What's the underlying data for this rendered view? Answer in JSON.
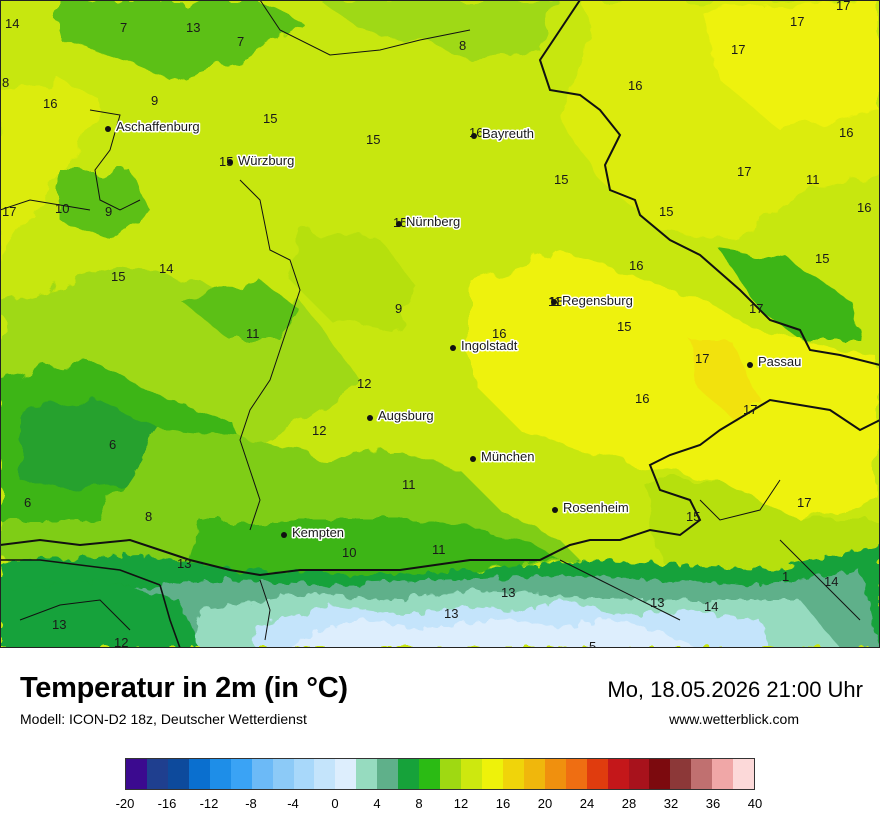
{
  "header": {
    "title": "Temperatur in 2m (in °C)",
    "model": "Modell: ICON-D2 18z, Deutscher Wetterdienst",
    "datetime": "Mo, 18.05.2026 21:00 Uhr",
    "website": "www.wetterblick.com"
  },
  "cities": [
    {
      "name": "Aschaffenburg",
      "value": ""
    },
    {
      "name": "Würzburg",
      "value": "15"
    },
    {
      "name": "Bayreuth",
      "value": "16"
    },
    {
      "name": "Nürnberg",
      "value": "15"
    },
    {
      "name": "Regensburg",
      "value": "18"
    },
    {
      "name": "Ingolstadt",
      "value": ""
    },
    {
      "name": "Passau",
      "value": ""
    },
    {
      "name": "Augsburg",
      "value": ""
    },
    {
      "name": "München",
      "value": ""
    },
    {
      "name": "Rosenheim",
      "value": ""
    },
    {
      "name": "Kempten",
      "value": ""
    }
  ],
  "values": [
    "14",
    "7",
    "13",
    "7",
    "8",
    "17",
    "17",
    "17",
    "8",
    "16",
    "9",
    "16",
    "15",
    "15",
    "16",
    "17",
    "16",
    "11",
    "15",
    "15",
    "17",
    "10",
    "9",
    "15",
    "16",
    "14",
    "15",
    "15",
    "9",
    "11",
    "16",
    "17",
    "17",
    "12",
    "16",
    "17",
    "6",
    "12",
    "11",
    "6",
    "8",
    "11",
    "15",
    "17",
    "13",
    "10",
    "11",
    "1",
    "14",
    "13",
    "13",
    "13",
    "14",
    "13",
    "12",
    "5"
  ],
  "legend": {
    "ticks": [
      "-20",
      "-16",
      "-12",
      "-8",
      "-4",
      "0",
      "4",
      "8",
      "12",
      "16",
      "20",
      "24",
      "28",
      "32",
      "36",
      "40"
    ],
    "colors": [
      "#3b0a8f",
      "#1f3f8f",
      "#0d4a9c",
      "#0a6fcf",
      "#1e8ee8",
      "#3aa3f5",
      "#6cbaf7",
      "#8ccaf7",
      "#a8d8fa",
      "#c4e4fb",
      "#ddeefd",
      "#96dbbf",
      "#5fb08a",
      "#16a23a",
      "#2bbb14",
      "#9fd912",
      "#cde80f",
      "#eef20a",
      "#f0d40a",
      "#f0b70c",
      "#f0900e",
      "#ef6e12",
      "#e03c0e",
      "#c4171a",
      "#a8121c",
      "#7c0a0e",
      "#8c3838",
      "#c07070",
      "#f0a7a7",
      "#fcd9d9"
    ]
  }
}
